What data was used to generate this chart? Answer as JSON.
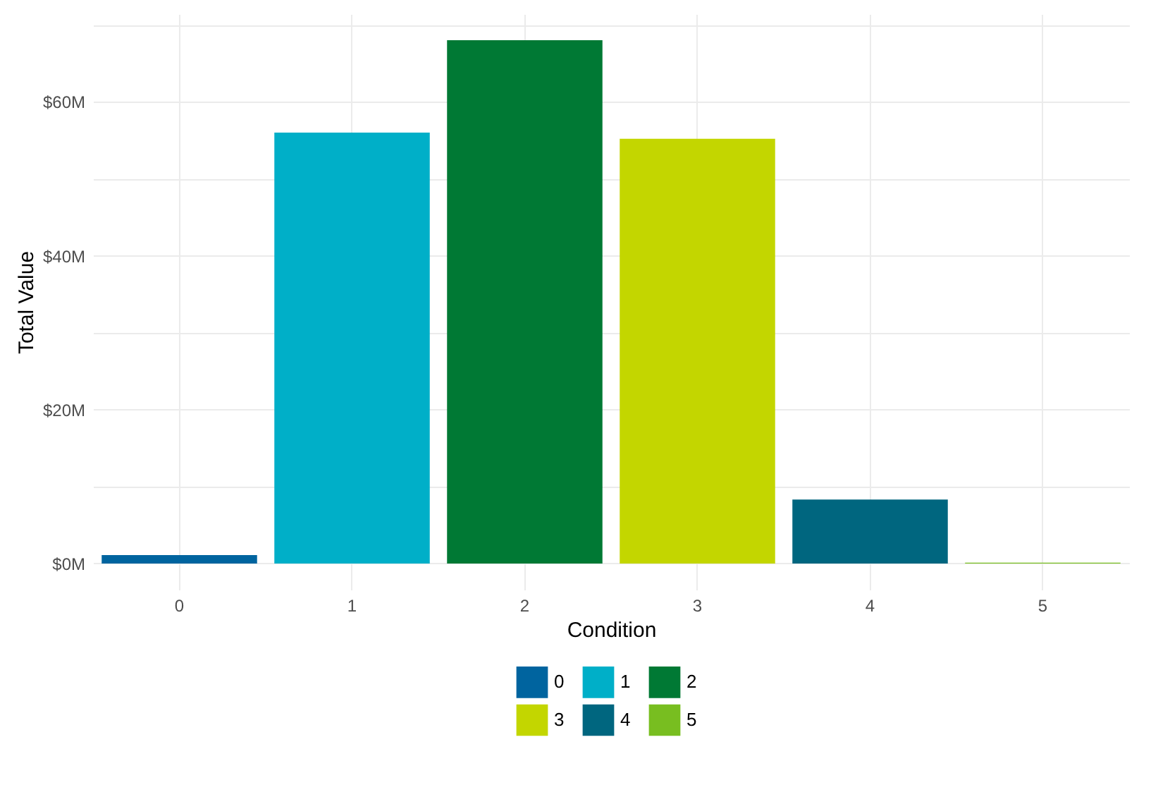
{
  "chart_data": {
    "type": "bar",
    "xlabel": "Condition",
    "ylabel": "Total Value",
    "categories": [
      "0",
      "1",
      "2",
      "3",
      "4",
      "5"
    ],
    "series": [
      {
        "name": "0",
        "color": "#00649f",
        "values": [
          1.1,
          null,
          null,
          null,
          null,
          null
        ]
      },
      {
        "name": "1",
        "color": "#00afc8",
        "values": [
          null,
          56.0,
          null,
          null,
          null,
          null
        ]
      },
      {
        "name": "2",
        "color": "#007934",
        "values": [
          null,
          null,
          68.0,
          null,
          null,
          null
        ]
      },
      {
        "name": "3",
        "color": "#c3d600",
        "values": [
          null,
          null,
          null,
          55.2,
          null,
          null
        ]
      },
      {
        "name": "4",
        "color": "#00667f",
        "values": [
          null,
          null,
          null,
          null,
          8.3,
          null
        ]
      },
      {
        "name": "5",
        "color": "#78be20",
        "values": [
          null,
          null,
          null,
          null,
          null,
          0.1
        ]
      }
    ],
    "ylim": [
      -3.4,
      71.4
    ],
    "yticks": [
      {
        "value": 0,
        "label": "$0M"
      },
      {
        "value": 10,
        "label": null
      },
      {
        "value": 20,
        "label": "$20M"
      },
      {
        "value": 30,
        "label": null
      },
      {
        "value": 40,
        "label": "$40M"
      },
      {
        "value": 50,
        "label": null
      },
      {
        "value": 60,
        "label": "$60M"
      },
      {
        "value": 70,
        "label": null
      }
    ],
    "grid": true,
    "legend": "bottom"
  }
}
